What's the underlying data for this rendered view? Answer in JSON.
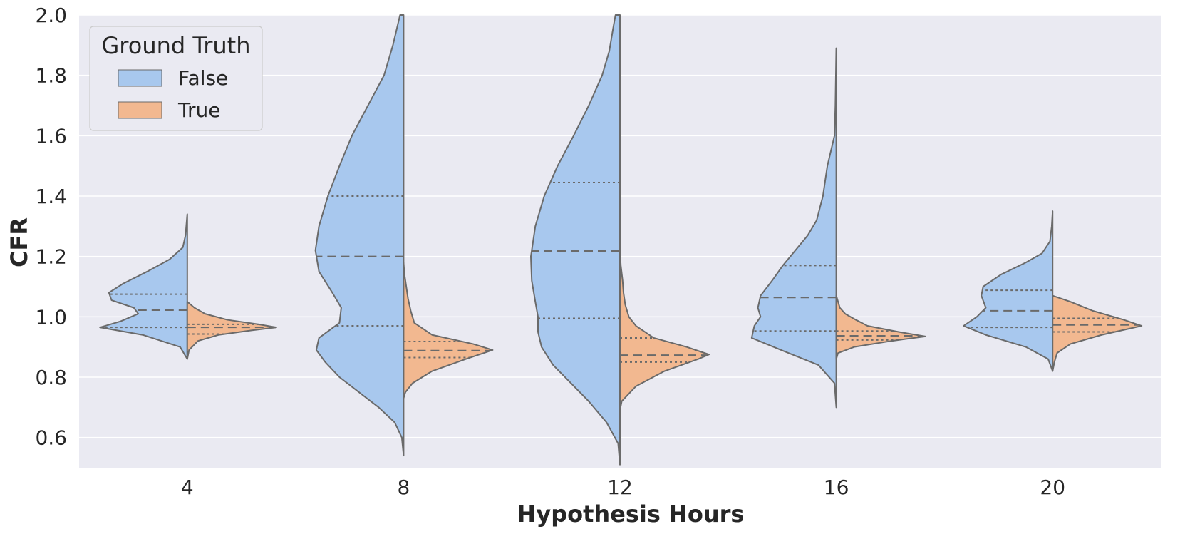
{
  "chart_data": {
    "type": "violin",
    "split": true,
    "xlabel": "Hypothesis Hours",
    "ylabel": "CFR",
    "ylim": [
      0.5,
      2.0
    ],
    "yticks": [
      0.6,
      0.8,
      1.0,
      1.2,
      1.4,
      1.6,
      1.8,
      2.0
    ],
    "grid": true,
    "categories": [
      "4",
      "8",
      "12",
      "16",
      "20"
    ],
    "legend": {
      "title": "Ground Truth",
      "position": "top-left",
      "entries": [
        {
          "label": "False",
          "color": "#a8c8ee"
        },
        {
          "label": "True",
          "color": "#f2b890"
        }
      ]
    },
    "colors": {
      "False": "#a8c8ee",
      "True": "#f2b890",
      "outline": "#6a6a6a",
      "plot_background": "#eaeaf2",
      "grid": "#ffffff"
    },
    "series": [
      {
        "name": "False",
        "side": "left",
        "violins": [
          {
            "category": "4",
            "min": 0.86,
            "max": 1.34,
            "q1": 0.965,
            "median": 1.022,
            "q3": 1.075,
            "density": [
              [
                0.86,
                0.0
              ],
              [
                0.9,
                0.08
              ],
              [
                0.94,
                0.5
              ],
              [
                0.965,
                0.98
              ],
              [
                0.985,
                0.75
              ],
              [
                1.01,
                0.55
              ],
              [
                1.03,
                0.6
              ],
              [
                1.055,
                0.85
              ],
              [
                1.08,
                0.88
              ],
              [
                1.11,
                0.72
              ],
              [
                1.15,
                0.45
              ],
              [
                1.19,
                0.2
              ],
              [
                1.23,
                0.05
              ],
              [
                1.27,
                0.02
              ],
              [
                1.34,
                0.0
              ]
            ]
          },
          {
            "category": "8",
            "min": 0.54,
            "max": 2.0,
            "q1": 0.97,
            "median": 1.2,
            "q3": 1.4,
            "density": [
              [
                0.54,
                0.0
              ],
              [
                0.6,
                0.02
              ],
              [
                0.65,
                0.1
              ],
              [
                0.7,
                0.28
              ],
              [
                0.75,
                0.5
              ],
              [
                0.8,
                0.72
              ],
              [
                0.85,
                0.88
              ],
              [
                0.89,
                0.98
              ],
              [
                0.93,
                0.95
              ],
              [
                0.98,
                0.72
              ],
              [
                1.03,
                0.7
              ],
              [
                1.08,
                0.8
              ],
              [
                1.15,
                0.95
              ],
              [
                1.22,
                0.99
              ],
              [
                1.3,
                0.95
              ],
              [
                1.4,
                0.85
              ],
              [
                1.5,
                0.72
              ],
              [
                1.6,
                0.58
              ],
              [
                1.7,
                0.4
              ],
              [
                1.8,
                0.22
              ],
              [
                1.9,
                0.12
              ],
              [
                2.0,
                0.04
              ]
            ]
          },
          {
            "category": "12",
            "min": 0.51,
            "max": 2.0,
            "q1": 0.995,
            "median": 1.218,
            "q3": 1.445,
            "density": [
              [
                0.51,
                0.0
              ],
              [
                0.58,
                0.02
              ],
              [
                0.65,
                0.15
              ],
              [
                0.72,
                0.35
              ],
              [
                0.78,
                0.55
              ],
              [
                0.84,
                0.75
              ],
              [
                0.9,
                0.88
              ],
              [
                0.95,
                0.92
              ],
              [
                1.0,
                0.92
              ],
              [
                1.05,
                0.95
              ],
              [
                1.12,
                0.99
              ],
              [
                1.2,
                1.0
              ],
              [
                1.3,
                0.95
              ],
              [
                1.4,
                0.85
              ],
              [
                1.5,
                0.7
              ],
              [
                1.6,
                0.52
              ],
              [
                1.7,
                0.35
              ],
              [
                1.8,
                0.2
              ],
              [
                1.88,
                0.12
              ],
              [
                1.95,
                0.08
              ],
              [
                2.0,
                0.05
              ]
            ]
          },
          {
            "category": "16",
            "min": 0.7,
            "max": 1.89,
            "q1": 0.953,
            "median": 1.064,
            "q3": 1.17,
            "density": [
              [
                0.7,
                0.0
              ],
              [
                0.78,
                0.02
              ],
              [
                0.84,
                0.2
              ],
              [
                0.89,
                0.62
              ],
              [
                0.93,
                0.95
              ],
              [
                0.97,
                0.92
              ],
              [
                1.0,
                0.85
              ],
              [
                1.03,
                0.88
              ],
              [
                1.07,
                0.85
              ],
              [
                1.12,
                0.72
              ],
              [
                1.17,
                0.6
              ],
              [
                1.22,
                0.46
              ],
              [
                1.27,
                0.32
              ],
              [
                1.32,
                0.22
              ],
              [
                1.4,
                0.15
              ],
              [
                1.5,
                0.1
              ],
              [
                1.6,
                0.02
              ],
              [
                1.7,
                0.01
              ],
              [
                1.89,
                0.0
              ]
            ]
          },
          {
            "category": "20",
            "min": 0.82,
            "max": 1.35,
            "q1": 0.965,
            "median": 1.02,
            "q3": 1.088,
            "density": [
              [
                0.82,
                0.0
              ],
              [
                0.86,
                0.05
              ],
              [
                0.9,
                0.3
              ],
              [
                0.94,
                0.75
              ],
              [
                0.97,
                1.0
              ],
              [
                1.0,
                0.85
              ],
              [
                1.03,
                0.75
              ],
              [
                1.07,
                0.8
              ],
              [
                1.1,
                0.78
              ],
              [
                1.14,
                0.58
              ],
              [
                1.18,
                0.3
              ],
              [
                1.21,
                0.12
              ],
              [
                1.25,
                0.03
              ],
              [
                1.3,
                0.01
              ],
              [
                1.35,
                0.0
              ]
            ]
          }
        ]
      },
      {
        "name": "True",
        "side": "right",
        "violins": [
          {
            "category": "4",
            "min": 0.86,
            "max": 1.05,
            "q1": 0.943,
            "median": 0.965,
            "q3": 0.975,
            "density": [
              [
                0.86,
                0.0
              ],
              [
                0.89,
                0.02
              ],
              [
                0.92,
                0.12
              ],
              [
                0.94,
                0.35
              ],
              [
                0.955,
                0.72
              ],
              [
                0.965,
                1.0
              ],
              [
                0.975,
                0.8
              ],
              [
                0.99,
                0.45
              ],
              [
                1.01,
                0.2
              ],
              [
                1.03,
                0.08
              ],
              [
                1.05,
                0.0
              ]
            ]
          },
          {
            "category": "8",
            "min": 0.73,
            "max": 1.18,
            "q1": 0.865,
            "median": 0.888,
            "q3": 0.918,
            "density": [
              [
                0.73,
                0.0
              ],
              [
                0.75,
                0.02
              ],
              [
                0.78,
                0.1
              ],
              [
                0.82,
                0.32
              ],
              [
                0.86,
                0.7
              ],
              [
                0.89,
                1.0
              ],
              [
                0.91,
                0.78
              ],
              [
                0.94,
                0.32
              ],
              [
                0.98,
                0.12
              ],
              [
                1.02,
                0.08
              ],
              [
                1.06,
                0.05
              ],
              [
                1.1,
                0.03
              ],
              [
                1.14,
                0.01
              ],
              [
                1.18,
                0.0
              ]
            ]
          },
          {
            "category": "12",
            "min": 0.69,
            "max": 1.22,
            "q1": 0.85,
            "median": 0.873,
            "q3": 0.93,
            "density": [
              [
                0.69,
                0.0
              ],
              [
                0.72,
                0.02
              ],
              [
                0.77,
                0.18
              ],
              [
                0.82,
                0.5
              ],
              [
                0.86,
                0.88
              ],
              [
                0.875,
                1.0
              ],
              [
                0.9,
                0.75
              ],
              [
                0.93,
                0.38
              ],
              [
                0.97,
                0.18
              ],
              [
                1.0,
                0.1
              ],
              [
                1.04,
                0.06
              ],
              [
                1.08,
                0.04
              ],
              [
                1.12,
                0.03
              ],
              [
                1.17,
                0.01
              ],
              [
                1.22,
                0.0
              ]
            ]
          },
          {
            "category": "16",
            "min": 0.86,
            "max": 1.07,
            "q1": 0.923,
            "median": 0.937,
            "q3": 0.953,
            "density": [
              [
                0.86,
                0.0
              ],
              [
                0.88,
                0.02
              ],
              [
                0.9,
                0.2
              ],
              [
                0.92,
                0.62
              ],
              [
                0.935,
                1.0
              ],
              [
                0.95,
                0.7
              ],
              [
                0.97,
                0.35
              ],
              [
                0.99,
                0.22
              ],
              [
                1.01,
                0.1
              ],
              [
                1.03,
                0.04
              ],
              [
                1.07,
                0.0
              ]
            ]
          },
          {
            "category": "20",
            "min": 0.82,
            "max": 1.07,
            "q1": 0.95,
            "median": 0.973,
            "q3": 0.995,
            "density": [
              [
                0.82,
                0.0
              ],
              [
                0.85,
                0.02
              ],
              [
                0.88,
                0.05
              ],
              [
                0.91,
                0.2
              ],
              [
                0.94,
                0.55
              ],
              [
                0.97,
                1.0
              ],
              [
                0.99,
                0.8
              ],
              [
                1.02,
                0.45
              ],
              [
                1.05,
                0.2
              ],
              [
                1.07,
                0.0
              ]
            ]
          }
        ]
      }
    ]
  }
}
